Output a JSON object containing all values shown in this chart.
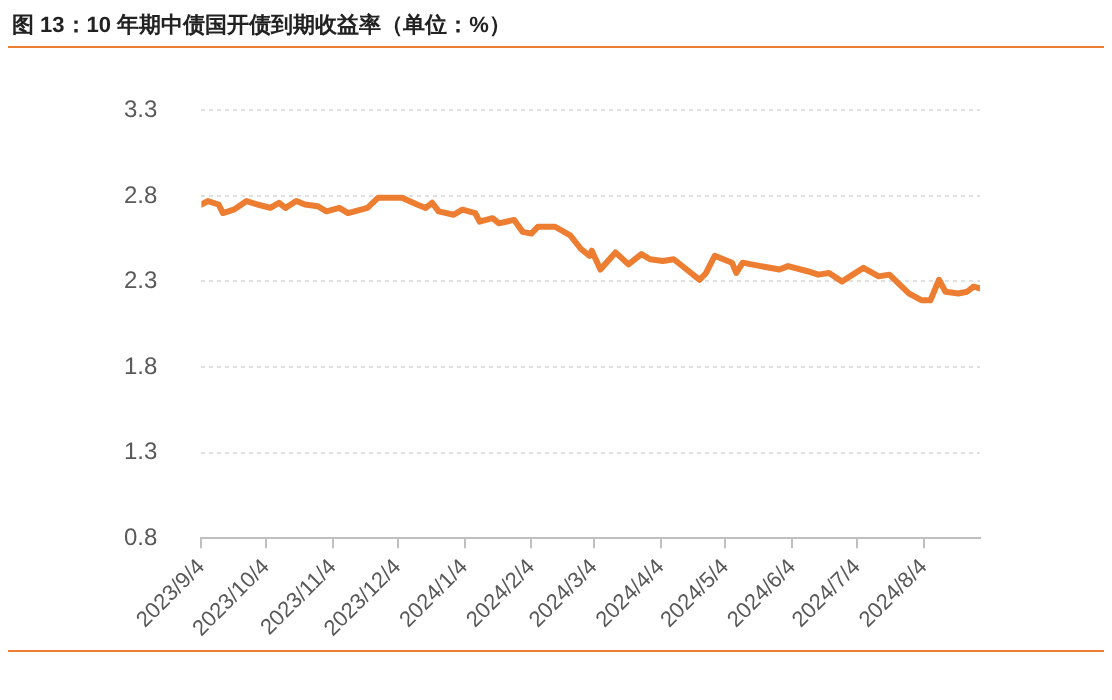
{
  "chart_data": {
    "type": "line",
    "title": "图 13：10 年期中债国开债到期收益率（单位：%）",
    "x": [
      "2023-09-04",
      "2023-09-07",
      "2023-09-12",
      "2023-09-14",
      "2023-09-19",
      "2023-09-25",
      "2023-09-30",
      "2023-10-06",
      "2023-10-10",
      "2023-10-13",
      "2023-10-18",
      "2023-10-22",
      "2023-10-28",
      "2023-11-01",
      "2023-11-07",
      "2023-11-11",
      "2023-11-20",
      "2023-11-25",
      "2023-12-06",
      "2023-12-13",
      "2023-12-17",
      "2023-12-20",
      "2023-12-23",
      "2023-12-30",
      "2024-01-03",
      "2024-01-09",
      "2024-01-11",
      "2024-01-17",
      "2024-01-20",
      "2024-01-27",
      "2024-01-31",
      "2024-02-04",
      "2024-02-07",
      "2024-02-15",
      "2024-02-22",
      "2024-02-27",
      "2024-03-02",
      "2024-03-03",
      "2024-03-07",
      "2024-03-14",
      "2024-03-20",
      "2024-03-26",
      "2024-03-30",
      "2024-04-05",
      "2024-04-10",
      "2024-04-16",
      "2024-04-22",
      "2024-04-25",
      "2024-04-29",
      "2024-05-07",
      "2024-05-09",
      "2024-05-12",
      "2024-05-16",
      "2024-05-29",
      "2024-06-02",
      "2024-06-11",
      "2024-06-16",
      "2024-06-21",
      "2024-06-27",
      "2024-07-02",
      "2024-07-07",
      "2024-07-14",
      "2024-07-19",
      "2024-07-28",
      "2024-08-03",
      "2024-08-07",
      "2024-08-11",
      "2024-08-14",
      "2024-08-20",
      "2024-08-24",
      "2024-08-27",
      "2024-08-30"
    ],
    "series": [
      {
        "color": "#ed7d31",
        "values": [
          2.75,
          2.77,
          2.75,
          2.7,
          2.72,
          2.77,
          2.75,
          2.73,
          2.76,
          2.73,
          2.77,
          2.75,
          2.74,
          2.71,
          2.73,
          2.7,
          2.73,
          2.79,
          2.79,
          2.75,
          2.73,
          2.76,
          2.71,
          2.69,
          2.72,
          2.7,
          2.65,
          2.67,
          2.64,
          2.66,
          2.59,
          2.58,
          2.62,
          2.62,
          2.57,
          2.49,
          2.45,
          2.48,
          2.37,
          2.47,
          2.4,
          2.46,
          2.43,
          2.42,
          2.43,
          2.37,
          2.31,
          2.35,
          2.45,
          2.41,
          2.35,
          2.41,
          2.4,
          2.37,
          2.39,
          2.36,
          2.34,
          2.35,
          2.3,
          2.34,
          2.38,
          2.33,
          2.34,
          2.23,
          2.19,
          2.19,
          2.31,
          2.24,
          2.23,
          2.24,
          2.27,
          2.26
        ]
      }
    ],
    "xlim": [
      "2023-09-04",
      "2024-08-30"
    ],
    "xticks": [
      {
        "value": "2023-09-04",
        "label": "2023/9/4"
      },
      {
        "value": "2023-10-04",
        "label": "2023/10/4"
      },
      {
        "value": "2023-11-04",
        "label": "2023/11/4"
      },
      {
        "value": "2023-12-04",
        "label": "2023/12/4"
      },
      {
        "value": "2024-01-04",
        "label": "2024/1/4"
      },
      {
        "value": "2024-02-04",
        "label": "2024/2/4"
      },
      {
        "value": "2024-03-04",
        "label": "2024/3/4"
      },
      {
        "value": "2024-04-04",
        "label": "2024/4/4"
      },
      {
        "value": "2024-05-04",
        "label": "2024/5/4"
      },
      {
        "value": "2024-06-04",
        "label": "2024/6/4"
      },
      {
        "value": "2024-07-04",
        "label": "2024/7/4"
      },
      {
        "value": "2024-08-04",
        "label": "2024/8/4"
      }
    ],
    "ylim": [
      0.8,
      3.3
    ],
    "yticks": [
      0.8,
      1.3,
      1.8,
      2.3,
      2.8,
      3.3
    ],
    "grid": "y",
    "legend": false,
    "marker": "none",
    "line_style": "solid"
  }
}
